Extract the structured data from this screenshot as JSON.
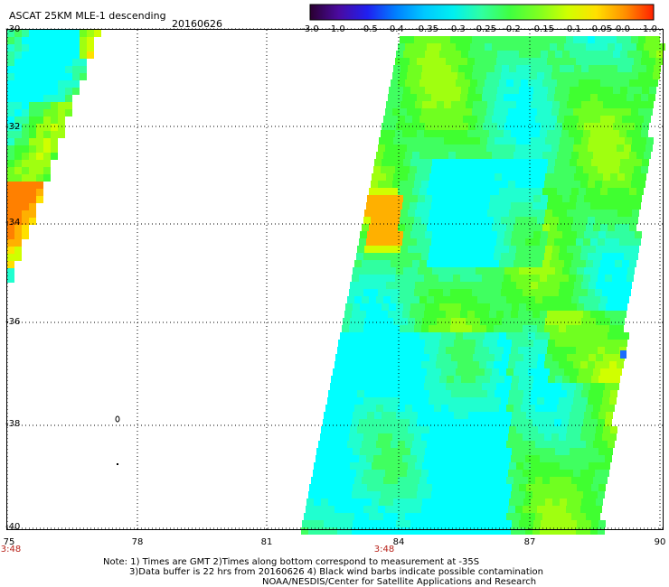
{
  "header": {
    "title": "ASCAT 25KM MLE-1 descending",
    "date": "20160626"
  },
  "colorbar": {
    "ticks": [
      "-3.0",
      "-1.0",
      "-0.5",
      "-0.4",
      "-0.35",
      "-0.3",
      "-0.25",
      "-0.2",
      "-0.15",
      "-0.1",
      "-0.05",
      "0.0",
      "1.0"
    ],
    "stops": [
      "#2a0030",
      "#4a0aa0",
      "#2020f0",
      "#0080ff",
      "#00c8ff",
      "#00f0f0",
      "#30ffa0",
      "#40ff40",
      "#80ff20",
      "#d0ff00",
      "#ffe000",
      "#ff9000",
      "#ff2000"
    ]
  },
  "map": {
    "lat_labels": [
      "-30",
      "-32",
      "-34",
      "-36",
      "-38",
      "-40"
    ],
    "lon_labels": [
      "75",
      "78",
      "81",
      "84",
      "87",
      "90"
    ],
    "pass_times": [
      "3:48",
      "3:48"
    ]
  },
  "notes": {
    "line1": "Note: 1) Times are GMT 2)Times along bottom correspond to measurement at -35S",
    "line2": "3)Data buffer is 22 hrs from 20160626 4) Black wind barbs indicate possible contamination",
    "line3": "NOAA/NESDIS/Center for Satellite Applications and Research"
  }
}
